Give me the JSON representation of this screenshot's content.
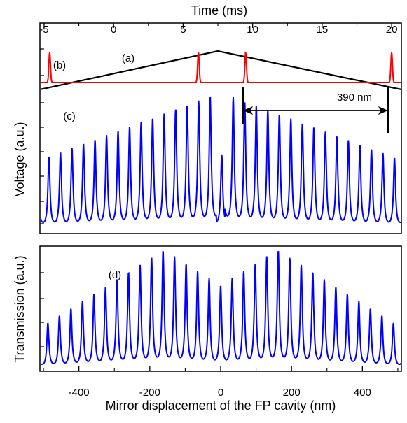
{
  "chart_data": [
    {
      "type": "line",
      "panel": "top",
      "x_top_label": "Time (ms)",
      "x_top_ticks": [
        "-5",
        "0",
        "5",
        "10",
        "15",
        "20"
      ],
      "x_top_tick_values": [
        -5,
        0,
        5,
        10,
        15,
        20
      ],
      "x_top_range": [
        -5.3,
        20.7
      ],
      "ylabel": "Voltage (a.u.)",
      "y_ticks_labeled": false,
      "annotations": [
        "(a)",
        "(b)",
        "(c)",
        "390 nm"
      ],
      "series": [
        {
          "label": "(a)",
          "kind": "triangular ramp",
          "color": "#000000",
          "x_ms": [
            -5.3,
            7.5,
            20.7
          ],
          "y_rel": [
            0.0,
            1.0,
            0.0
          ]
        },
        {
          "label": "(b)",
          "kind": "sharp peaks",
          "color": "#ff0000",
          "peaks_ms": [
            -4.6,
            6.1,
            9.5,
            20.0
          ]
        },
        {
          "label": "(c)",
          "kind": "fringes",
          "color": "#0000ff",
          "x_nm_range": [
            -510,
            510
          ],
          "fringe_period_nm": 32.5,
          "envelope": "rises toward center, dip at center",
          "reference_marks_ms": [
            9.5,
            20.0
          ]
        }
      ]
    },
    {
      "type": "line",
      "panel": "bottom",
      "xlabel": "Mirror displacement of the FP cavity (nm)",
      "x_ticks": [
        "-400",
        "-200",
        "0",
        "200",
        "400"
      ],
      "x_tick_values": [
        -400,
        -200,
        0,
        200,
        400
      ],
      "xlim": [
        -510,
        510
      ],
      "ylabel": "Transmission (a.u.)",
      "y_ticks_labeled": false,
      "annotations": [
        "(d)"
      ],
      "series": [
        {
          "label": "(d)",
          "kind": "fringes",
          "color": "#0000ff",
          "fringe_period_nm": 32.5,
          "envelope_peaks_nm": [
            -160,
            160
          ],
          "envelope_min_nm": 0
        }
      ]
    }
  ],
  "colors": {
    "ramp": "#000000",
    "reference": "#ff0000",
    "fringes": "#0000ff",
    "axes": "#000000"
  }
}
